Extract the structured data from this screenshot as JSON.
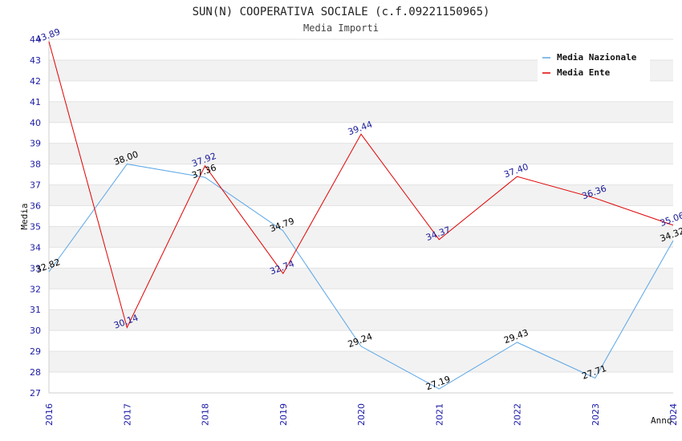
{
  "chart_data": {
    "type": "line",
    "title": "SUN(N) COOPERATIVA SOCIALE (c.f.09221150965)",
    "subtitle": "Media Importi",
    "xlabel": "Anno",
    "ylabel": "Media",
    "categories": [
      "2016",
      "2017",
      "2018",
      "2019",
      "2020",
      "2021",
      "2022",
      "2023",
      "2024"
    ],
    "ylim": [
      27,
      44
    ],
    "y_ticks": [
      "27",
      "28",
      "29",
      "30",
      "31",
      "32",
      "33",
      "34",
      "35",
      "36",
      "37",
      "38",
      "39",
      "40",
      "41",
      "42",
      "43",
      "44"
    ],
    "grid": true,
    "legend_position": "top-right",
    "series": [
      {
        "name": "Media Nazionale",
        "color": "#5aa5e6",
        "label_color": "#000000",
        "values": [
          32.82,
          38.0,
          37.36,
          34.79,
          29.24,
          27.19,
          29.43,
          27.71,
          34.32
        ],
        "labels": [
          "32.82",
          "38.00",
          "37.36",
          "34.79",
          "29.24",
          "27.19",
          "29.43",
          "27.71",
          "34.32"
        ]
      },
      {
        "name": "Media Ente",
        "color": "#e00000",
        "label_color": "#1a1a99",
        "values": [
          43.89,
          30.14,
          37.92,
          32.74,
          39.44,
          34.37,
          37.4,
          36.36,
          35.06
        ],
        "labels": [
          "43.89",
          "30.14",
          "37.92",
          "32.74",
          "39.44",
          "34.37",
          "37.40",
          "36.36",
          "35.06"
        ]
      }
    ]
  }
}
